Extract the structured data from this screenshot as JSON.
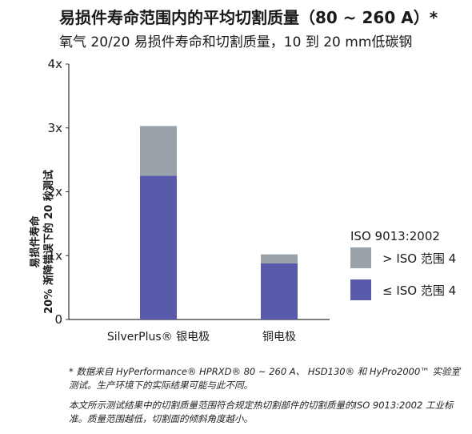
{
  "header": {
    "title": "易损件寿命范围内的平均切割质量（80 ~ 260 A）*",
    "subtitle": "氧气 20/20 易损件寿命和切割质量，10 到 20 mm低碳钢"
  },
  "chart_data": {
    "type": "bar",
    "stacked": true,
    "ylabel_line1": "易损件寿命",
    "ylabel_line2": "20% 渐降错误下的 20 秒测试",
    "categories": [
      "SilverPlus® 银电极",
      "铜电极"
    ],
    "yticks": [
      "0",
      "1x",
      "2x",
      "3x",
      "4x"
    ],
    "ylim": [
      0,
      4
    ],
    "series": [
      {
        "name": "≤ ISO 范围 4",
        "color": "#5a5aaa",
        "values": [
          2.25,
          0.88
        ]
      },
      {
        "name": "> ISO 范围 4",
        "color": "#9aa2a9",
        "values": [
          0.78,
          0.14
        ]
      }
    ],
    "legend_title": "ISO 9013:2002",
    "legend_position": "right",
    "grid": false
  },
  "legend": {
    "title": "ISO 9013:2002",
    "items": [
      {
        "label": "> ISO 范围 4",
        "color": "#9aa2a9"
      },
      {
        "label": "≤ ISO 范围 4",
        "color": "#5a5aaa"
      }
    ]
  },
  "footnotes": {
    "note1": "* 数据来自 HyPerformance® HPRXD® 80 ~ 260 A、 HSD130® 和 HyPro2000™ 实验室测试。生产环境下的实际结果可能与此不同。",
    "note2": "本文所示测试结果中的切割质量范围符合规定热切割部件的切割质量的ISO 9013:2002 工业标准。质量范围越低，切割面的倾斜角度越小。"
  }
}
